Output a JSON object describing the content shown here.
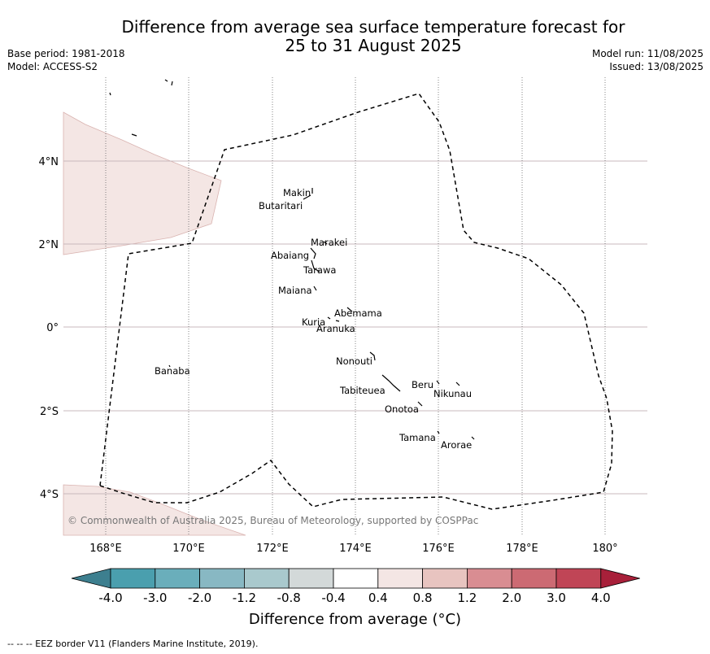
{
  "title_line1": "Difference from average sea surface temperature forecast for",
  "title_line2": "25 to 31 August 2025",
  "base_period": "Base period: 1981-2018",
  "model": "Model: ACCESS-S2",
  "model_run": "Model run: 11/08/2025",
  "issued": "Issued: 13/08/2025",
  "lat_labels": [
    "4°N",
    "2°N",
    "0°",
    "2°S",
    "4°S"
  ],
  "lon_labels": [
    "168°E",
    "170°E",
    "172°E",
    "174°E",
    "176°E",
    "178°E",
    "180°"
  ],
  "islands": [
    "Makin",
    "Butaritari",
    "Marakei",
    "Abaiang",
    "Tarawa",
    "Maiana",
    "Abemama",
    "Kuria",
    "Aranuka",
    "Nonouti",
    "Banaba",
    "Beru",
    "Nikunau",
    "Tabiteuea",
    "Onotoa",
    "Tamana",
    "Arorae"
  ],
  "copyright": "© Commonwealth of Australia 2025, Bureau of Meteorology, supported by COSPPac",
  "colorbar": {
    "ticks": [
      "-4.0",
      "-3.0",
      "-2.0",
      "-1.2",
      "-0.8",
      "-0.4",
      "0.4",
      "0.8",
      "1.2",
      "2.0",
      "3.0",
      "4.0"
    ],
    "colors": [
      "#3d7f8f",
      "#4a9fae",
      "#6aaebb",
      "#88b8c3",
      "#a9c9cd",
      "#d3d9d9",
      "#ffffff",
      "#f4e6e4",
      "#e8c4c0",
      "#d98d92",
      "#cc6a73",
      "#c04556",
      "#a8203a"
    ],
    "label": "Difference from average (°C)"
  },
  "footer": "--  --  -- EEZ border V11 (Flanders Marine Institute, 2019).",
  "colors": {
    "anomaly_04_08": "#f4e6e4",
    "grid": "#c8b8bc"
  }
}
